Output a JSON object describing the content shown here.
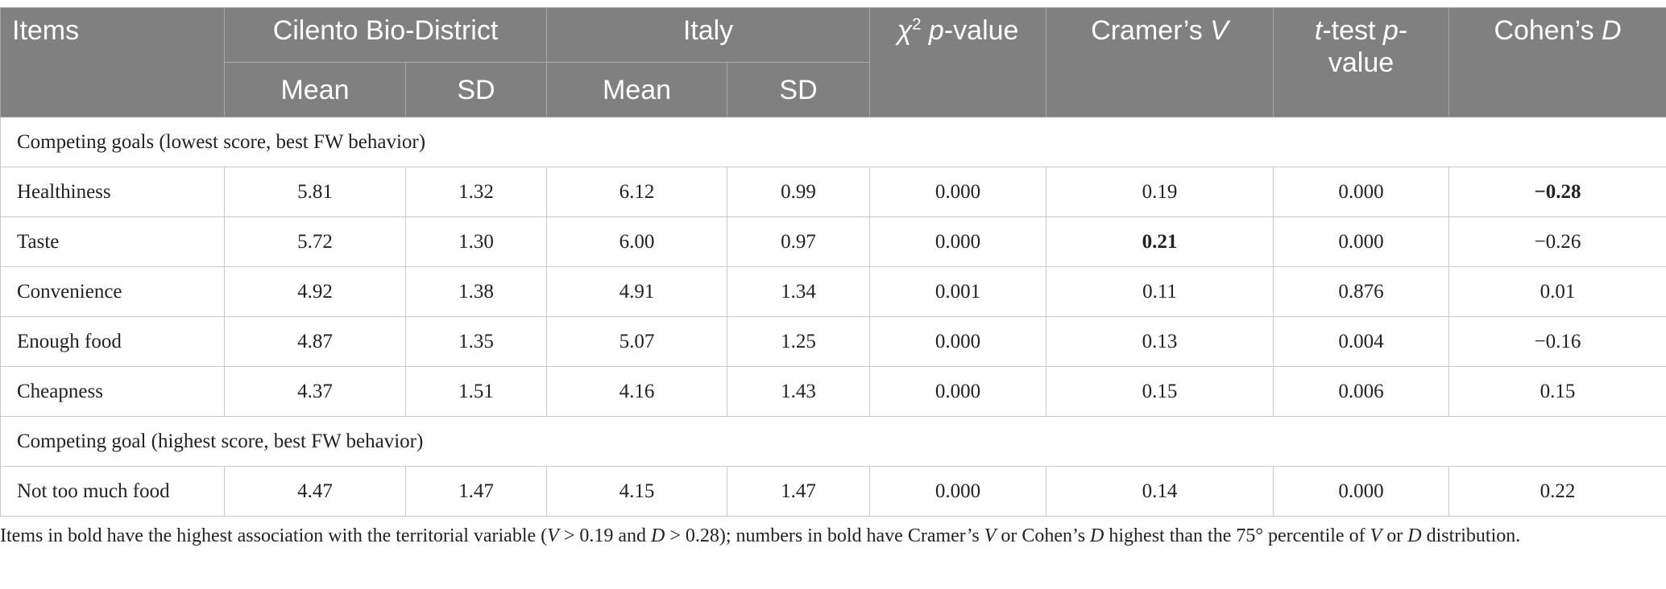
{
  "table": {
    "header": {
      "columns": [
        {
          "parts": [
            {
              "text": "Items"
            }
          ],
          "rowspan": 2
        },
        {
          "parts": [
            {
              "text": "Cilento Bio-District"
            }
          ],
          "colspan": 2
        },
        {
          "parts": [
            {
              "text": "Italy"
            }
          ],
          "colspan": 2
        },
        {
          "parts": [
            {
              "text": "χ",
              "style": "italic"
            },
            {
              "text": "2",
              "style": "sup"
            },
            {
              "text": " "
            },
            {
              "text": "p",
              "style": "italic"
            },
            {
              "text": "-value"
            }
          ],
          "rowspan": 2
        },
        {
          "parts": [
            {
              "text": "Cramer’s "
            },
            {
              "text": "V",
              "style": "italic"
            }
          ],
          "rowspan": 2
        },
        {
          "parts": [
            {
              "text": "t",
              "style": "italic"
            },
            {
              "text": "-test "
            },
            {
              "text": "p",
              "style": "italic"
            },
            {
              "text": "-value"
            }
          ],
          "rowspan": 2
        },
        {
          "parts": [
            {
              "text": "Cohen’s "
            },
            {
              "text": "D",
              "style": "italic"
            }
          ],
          "rowspan": 2
        }
      ],
      "subcolumns": [
        "Mean",
        "SD",
        "Mean",
        "SD"
      ]
    },
    "sections": [
      {
        "title": "Competing goals (lowest score, best FW behavior)",
        "rows": [
          {
            "item": "Healthiness",
            "values": [
              "5.81",
              "1.32",
              "6.12",
              "0.99",
              "0.000",
              "0.19",
              "0.000",
              "−0.28"
            ],
            "bold": [
              7
            ]
          },
          {
            "item": "Taste",
            "values": [
              "5.72",
              "1.30",
              "6.00",
              "0.97",
              "0.000",
              "0.21",
              "0.000",
              "−0.26"
            ],
            "bold": [
              5
            ]
          },
          {
            "item": "Convenience",
            "values": [
              "4.92",
              "1.38",
              "4.91",
              "1.34",
              "0.001",
              "0.11",
              "0.876",
              "0.01"
            ]
          },
          {
            "item": "Enough food",
            "values": [
              "4.87",
              "1.35",
              "5.07",
              "1.25",
              "0.000",
              "0.13",
              "0.004",
              "−0.16"
            ]
          },
          {
            "item": "Cheapness",
            "values": [
              "4.37",
              "1.51",
              "4.16",
              "1.43",
              "0.000",
              "0.15",
              "0.006",
              "0.15"
            ]
          }
        ]
      },
      {
        "title": "Competing goal (highest score, best FW behavior)",
        "rows": [
          {
            "item": "Not too much food",
            "values": [
              "4.47",
              "1.47",
              "4.15",
              "1.47",
              "0.000",
              "0.14",
              "0.000",
              "0.22"
            ]
          }
        ]
      }
    ],
    "footnote": [
      {
        "text": "Items in bold have the highest association with the territorial variable ("
      },
      {
        "text": "V",
        "style": "italic"
      },
      {
        "text": " > 0.19 and "
      },
      {
        "text": "D",
        "style": "italic"
      },
      {
        "text": " > 0.28); numbers in bold have Cramer’s "
      },
      {
        "text": "V",
        "style": "italic"
      },
      {
        "text": " or Cohen’s "
      },
      {
        "text": "D",
        "style": "italic"
      },
      {
        "text": " highest than the 75° percentile of "
      },
      {
        "text": "V",
        "style": "italic"
      },
      {
        "text": " or "
      },
      {
        "text": "D",
        "style": "italic"
      },
      {
        "text": " distribution."
      }
    ]
  }
}
